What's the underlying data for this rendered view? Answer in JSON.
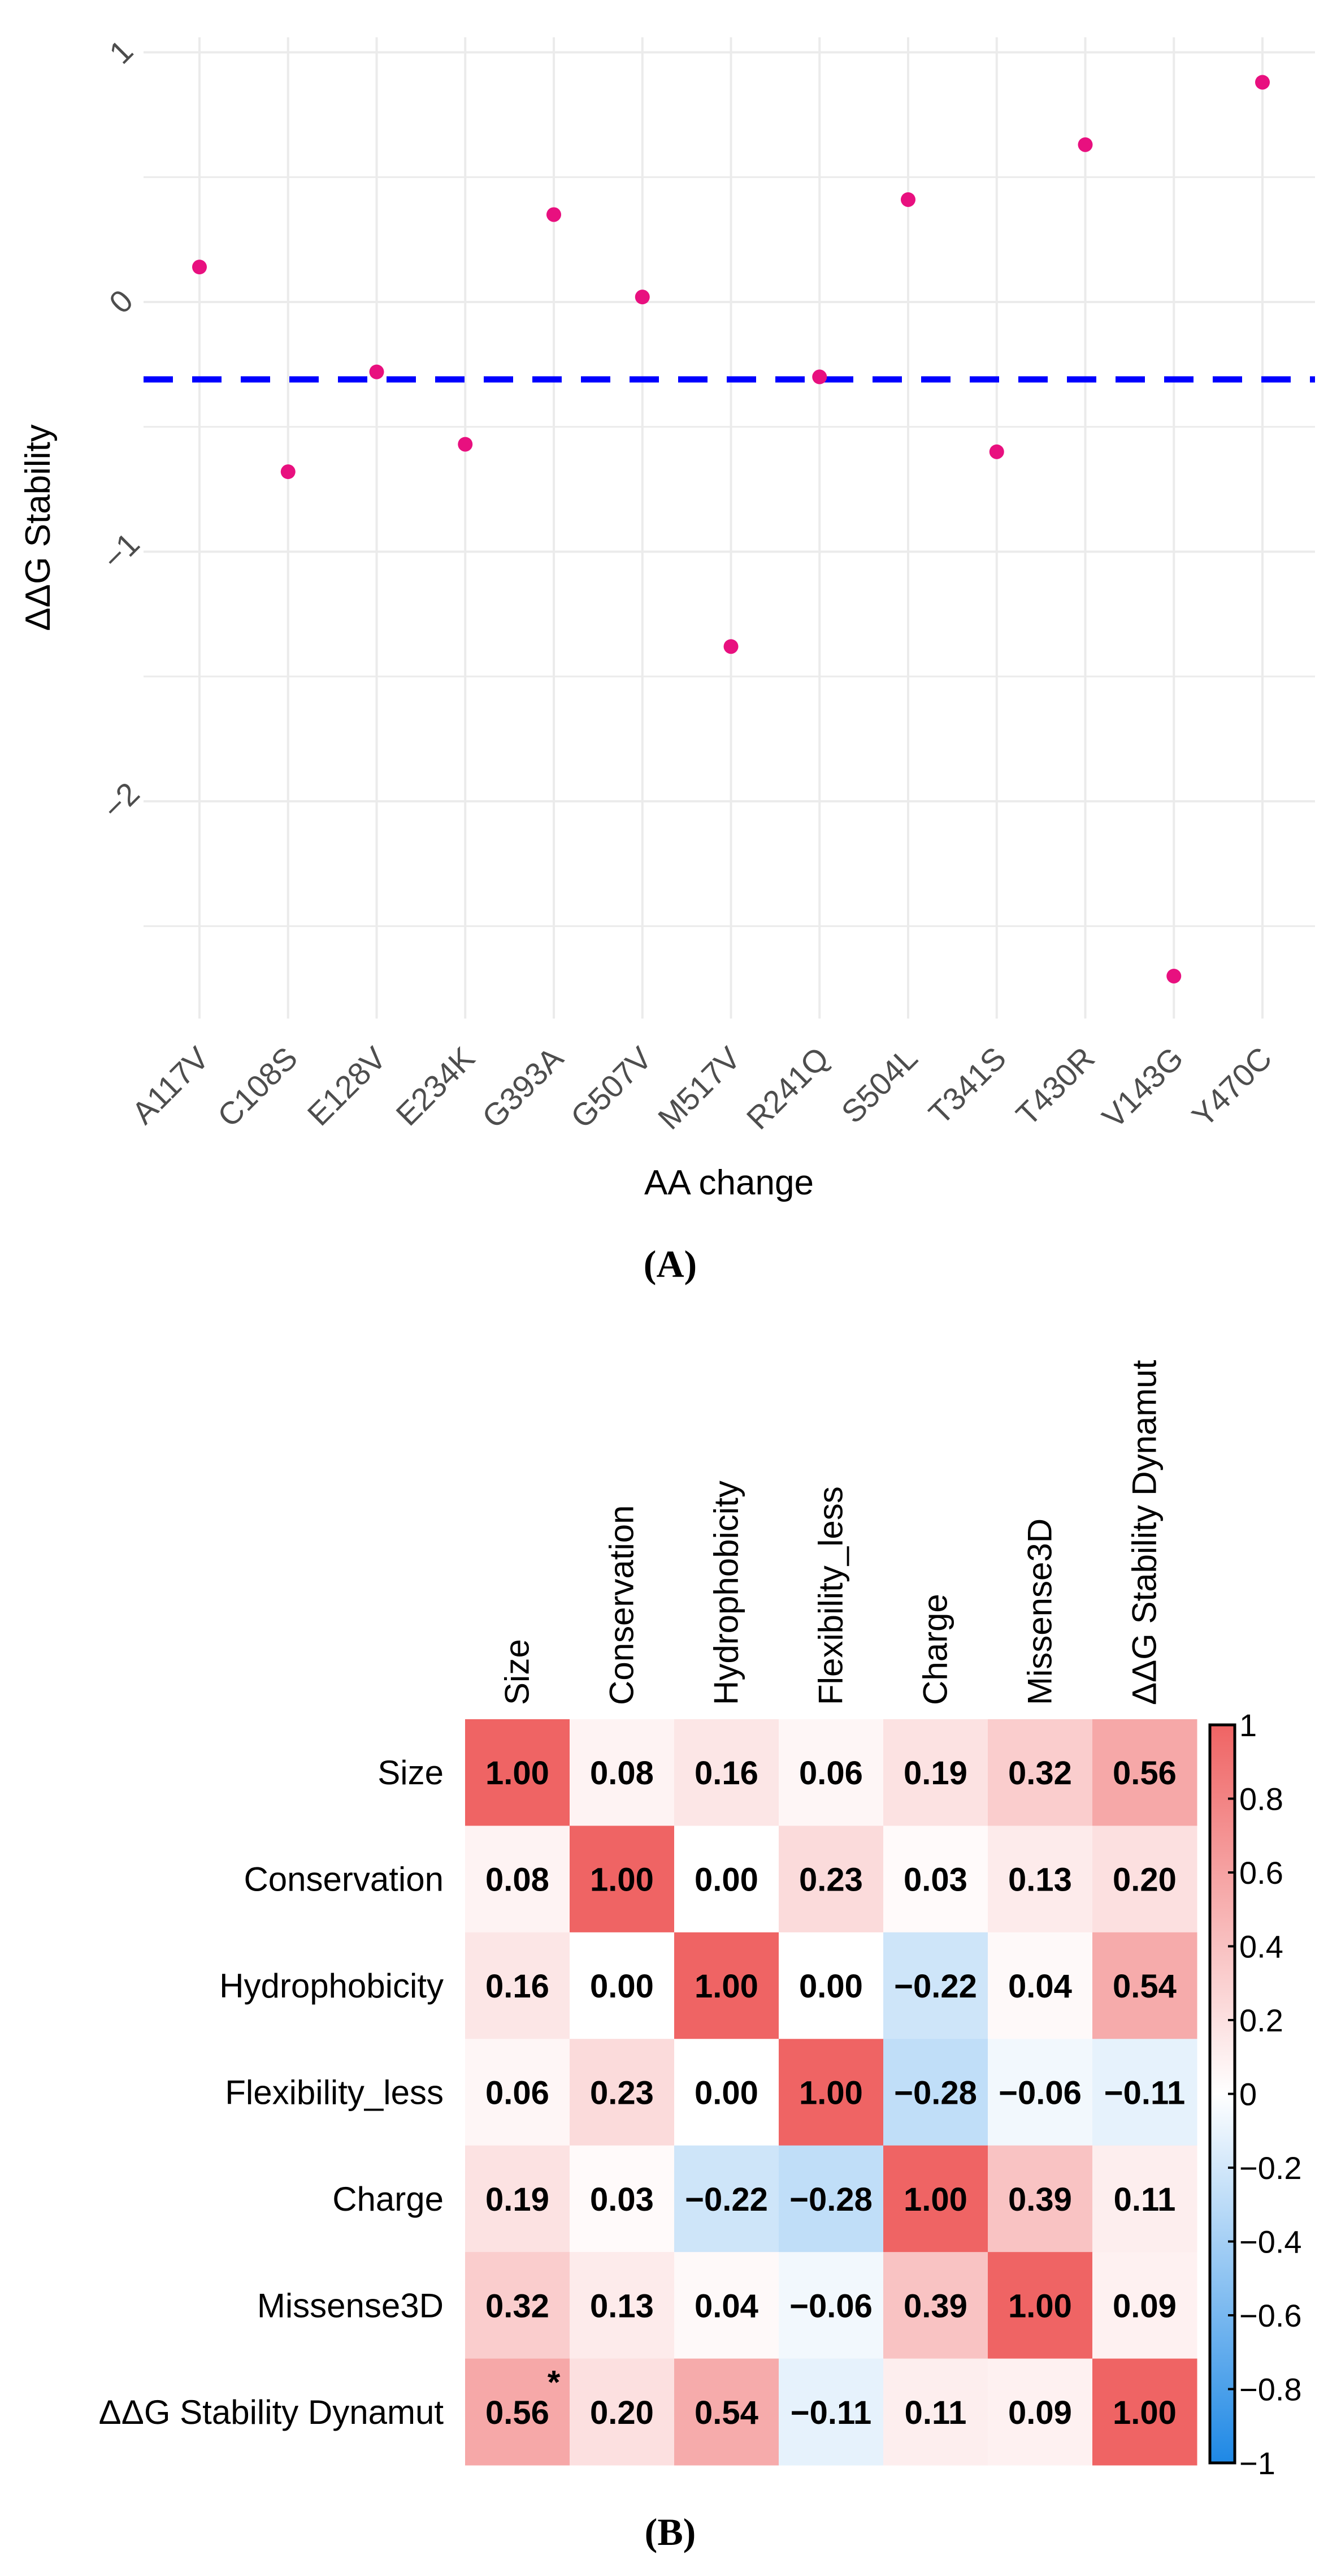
{
  "chart_data": [
    {
      "type": "scatter",
      "panel_label": "(A)",
      "xlabel": "AA change",
      "ylabel": "ΔΔG Stability",
      "categories": [
        "A117V",
        "C108S",
        "E128V",
        "E234K",
        "G393A",
        "G507V",
        "M517V",
        "R241Q",
        "S504L",
        "T341S",
        "T430R",
        "V143G",
        "Y470C"
      ],
      "values": [
        0.14,
        -0.68,
        -0.28,
        -0.57,
        0.35,
        0.02,
        -1.38,
        -0.3,
        0.41,
        -0.6,
        0.63,
        -2.7,
        0.88
      ],
      "reference_line": -0.31,
      "ylim": [
        -2.87,
        1.06
      ],
      "yticks": [
        1,
        0,
        -1,
        -2
      ],
      "ytick_labels": [
        "1",
        "0",
        "−1",
        "−2"
      ],
      "grid": true,
      "colors": {
        "point": "#E8107F",
        "reference_line": "#0000FF",
        "grid": "#EBEBEB"
      }
    },
    {
      "type": "heatmap",
      "panel_label": "(B)",
      "variables": [
        "Size",
        "Conservation",
        "Hydrophobicity",
        "Flexibility_less",
        "Charge",
        "Missense3D",
        "ΔΔG Stability Dynamut"
      ],
      "matrix": [
        [
          1.0,
          0.08,
          0.16,
          0.06,
          0.19,
          0.32,
          0.56
        ],
        [
          0.08,
          1.0,
          0.0,
          0.23,
          0.03,
          0.13,
          0.2
        ],
        [
          0.16,
          0.0,
          1.0,
          0.0,
          -0.22,
          0.04,
          0.54
        ],
        [
          0.06,
          0.23,
          0.0,
          1.0,
          -0.28,
          -0.06,
          -0.11
        ],
        [
          0.19,
          0.03,
          -0.22,
          -0.28,
          1.0,
          0.39,
          0.11
        ],
        [
          0.32,
          0.13,
          0.04,
          -0.06,
          0.39,
          1.0,
          0.09
        ],
        [
          0.56,
          0.2,
          0.54,
          -0.11,
          0.11,
          0.09,
          1.0
        ]
      ],
      "labels": [
        [
          "1.00",
          "0.08",
          "0.16",
          "0.06",
          "0.19",
          "0.32",
          "0.56"
        ],
        [
          "0.08",
          "1.00",
          "0.00",
          "0.23",
          "0.03",
          "0.13",
          "0.20"
        ],
        [
          "0.16",
          "0.00",
          "1.00",
          "0.00",
          "−0.22",
          "0.04",
          "0.54"
        ],
        [
          "0.06",
          "0.23",
          "0.00",
          "1.00",
          "−0.28",
          "−0.06",
          "−0.11"
        ],
        [
          "0.19",
          "0.03",
          "−0.22",
          "−0.28",
          "1.00",
          "0.39",
          "0.11"
        ],
        [
          "0.32",
          "0.13",
          "0.04",
          "−0.06",
          "0.39",
          "1.00",
          "0.09"
        ],
        [
          "0.56",
          "0.20",
          "0.54",
          "−0.11",
          "0.11",
          "0.09",
          "1.00"
        ]
      ],
      "significance": [
        {
          "row": 6,
          "col": 0,
          "mark": "*"
        }
      ],
      "colorbar": {
        "range": [
          -1,
          1
        ],
        "ticks": [
          1,
          0.8,
          0.6,
          0.4,
          0.2,
          0,
          -0.2,
          -0.4,
          -0.6,
          -0.8,
          -1
        ],
        "tick_labels": [
          "1",
          "0.8",
          "0.6",
          "0.4",
          "0.2",
          "0",
          "−0.2",
          "−0.4",
          "−0.6",
          "−0.8",
          "−1"
        ]
      },
      "colors": {
        "positive": "#EF6464",
        "negative": "#1E88E5",
        "zero": "#FFFFFF"
      }
    }
  ]
}
